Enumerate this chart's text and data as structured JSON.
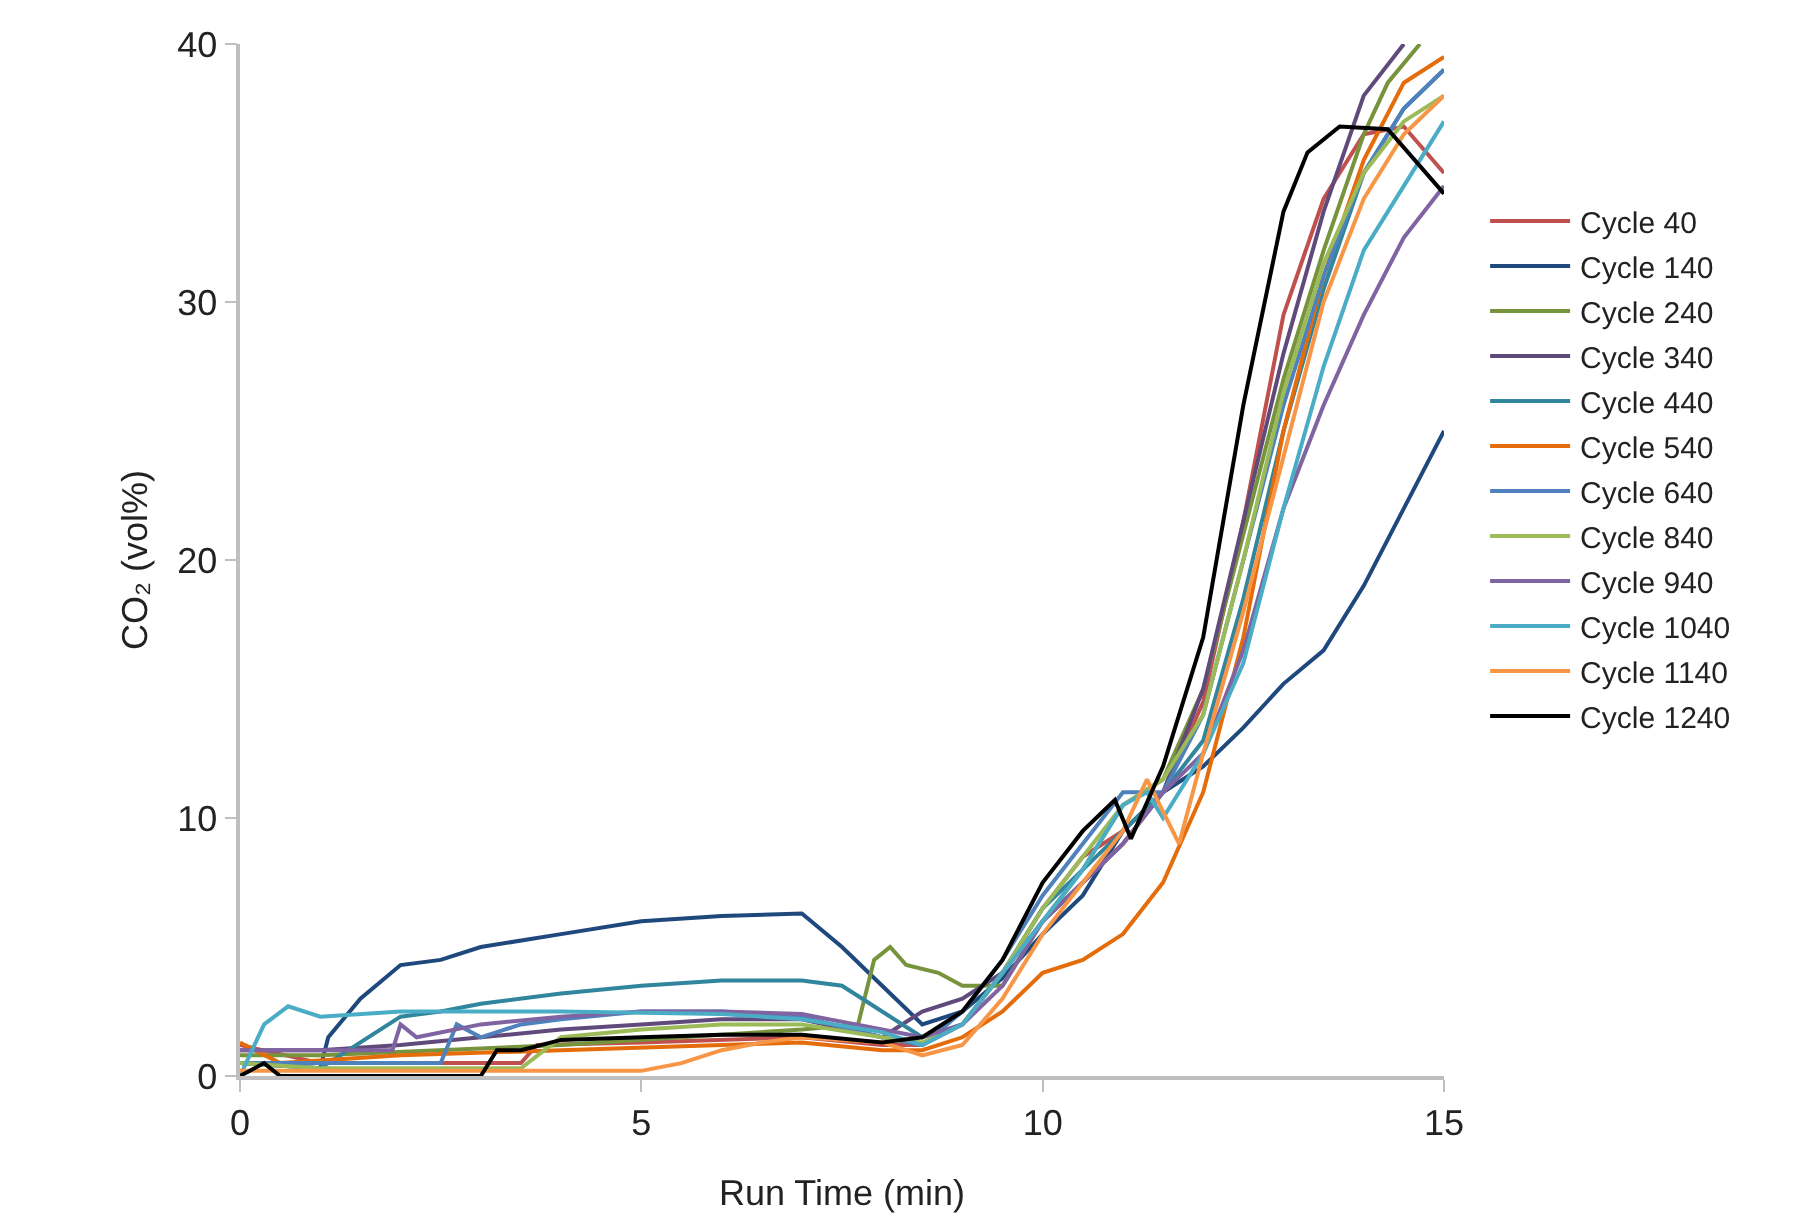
{
  "chart_data": {
    "type": "line",
    "xlabel": "Run Time (min)",
    "ylabel": "CO₂ (vol%)",
    "xlim": [
      0,
      15
    ],
    "ylim": [
      0,
      40
    ],
    "xticks": [
      0,
      5,
      10,
      15
    ],
    "yticks": [
      0,
      10,
      20,
      30,
      40
    ],
    "grid": false,
    "legend": "right",
    "marker": "none",
    "line_style": "solid",
    "series": [
      {
        "name": "Cycle 40",
        "color": "#c0504d",
        "x": [
          0,
          1,
          3.5,
          3.7,
          5,
          7,
          8,
          8.5,
          9,
          9.5,
          10,
          10.5,
          11,
          11.5,
          12,
          12.5,
          13,
          13.5,
          14,
          14.5,
          15
        ],
        "values": [
          1.2,
          0.5,
          0.5,
          1.2,
          1.3,
          1.5,
          1.2,
          1.2,
          2,
          4,
          6.5,
          8.5,
          9.5,
          11,
          14.5,
          21.5,
          29.5,
          34,
          36.5,
          36.8,
          35
        ]
      },
      {
        "name": "Cycle 140",
        "color": "#1f497d",
        "x": [
          0,
          1,
          1.1,
          1.5,
          2,
          2.5,
          3,
          4,
          5,
          6,
          7,
          7.5,
          8,
          8.5,
          9,
          9.5,
          10,
          10.5,
          11,
          11.5,
          12,
          12.5,
          13,
          13.5,
          14,
          14.5,
          15
        ],
        "values": [
          0.5,
          0.3,
          1.5,
          3,
          4.3,
          4.5,
          5,
          5.5,
          6,
          6.2,
          6.3,
          5,
          3.5,
          2,
          2.5,
          3.8,
          5.5,
          7,
          9.5,
          11,
          12,
          13.5,
          15.2,
          16.5,
          19,
          22,
          25
        ]
      },
      {
        "name": "Cycle 240",
        "color": "#77933c",
        "x": [
          0,
          1,
          4,
          7,
          7.7,
          7.9,
          8.1,
          8.3,
          8.7,
          9,
          9.5,
          10,
          10.5,
          11,
          11.5,
          12,
          12.5,
          13,
          13.5,
          14,
          14.3,
          14.7
        ],
        "values": [
          0.8,
          0.8,
          1.2,
          1.8,
          2,
          4.5,
          5,
          4.3,
          4,
          3.5,
          3.5,
          6,
          8,
          10.5,
          11.5,
          15,
          21,
          27,
          32,
          36.5,
          38.5,
          40
        ]
      },
      {
        "name": "Cycle 340",
        "color": "#604a7b",
        "x": [
          0,
          1,
          2,
          3,
          4,
          5,
          6,
          7,
          8,
          8.5,
          9,
          9.5,
          10,
          10.5,
          11,
          11.5,
          12,
          12.5,
          13,
          13.5,
          14,
          14.5
        ],
        "values": [
          1,
          1,
          1.2,
          1.5,
          1.8,
          2,
          2.2,
          2.2,
          1.5,
          2.5,
          3,
          4,
          6,
          7.5,
          9,
          11,
          15,
          21.5,
          28,
          33.5,
          38,
          40
        ]
      },
      {
        "name": "Cycle 440",
        "color": "#31859c",
        "x": [
          0,
          1,
          2,
          2.5,
          3,
          4,
          5,
          6,
          7,
          7.5,
          8,
          8.5,
          9,
          9.5,
          10,
          10.5,
          11,
          11.5,
          12,
          12.5,
          13,
          13.5,
          14,
          14.5,
          15
        ],
        "values": [
          0.5,
          0.3,
          2.3,
          2.5,
          2.8,
          3.2,
          3.5,
          3.7,
          3.7,
          3.5,
          2.5,
          1.5,
          2,
          4,
          6.5,
          8,
          9.5,
          11,
          13,
          18.5,
          25,
          30.5,
          35,
          37.5,
          39
        ]
      },
      {
        "name": "Cycle 540",
        "color": "#e46c0a",
        "x": [
          0,
          0.5,
          2,
          4,
          6,
          7,
          8,
          8.5,
          9,
          9.5,
          10,
          10.5,
          11,
          11.5,
          12,
          12.5,
          13,
          13.5,
          14,
          14.5,
          15
        ],
        "values": [
          1.3,
          0.5,
          0.8,
          1,
          1.2,
          1.3,
          1,
          1,
          1.5,
          2.5,
          4,
          4.5,
          5.5,
          7.5,
          11,
          17,
          25,
          31,
          35.5,
          38.5,
          39.5
        ]
      },
      {
        "name": "Cycle 640",
        "color": "#4f81bd",
        "x": [
          0,
          1,
          2.5,
          2.7,
          3,
          3.5,
          4,
          5,
          6,
          7,
          8,
          8.5,
          9,
          9.5,
          10,
          10.5,
          11,
          11.5,
          12,
          12.5,
          13,
          13.5,
          14,
          14.5,
          15
        ],
        "values": [
          0.5,
          0.5,
          0.5,
          2,
          1.5,
          2,
          2.2,
          2.5,
          2.5,
          2.3,
          1.5,
          1.2,
          2.5,
          4.5,
          7,
          9,
          11,
          11,
          14,
          20,
          26,
          31,
          35,
          37.5,
          39
        ]
      },
      {
        "name": "Cycle 840",
        "color": "#9bbb59",
        "x": [
          0,
          1,
          2,
          3,
          3.5,
          4,
          5,
          6,
          7,
          8,
          8.5,
          9,
          9.5,
          10,
          10.5,
          11,
          11.5,
          12,
          12.5,
          13,
          13.5,
          14,
          14.5,
          15
        ],
        "values": [
          0.5,
          0.3,
          0.3,
          0.3,
          0.3,
          1.5,
          1.8,
          2,
          2,
          1.5,
          1.3,
          2,
          4,
          6.5,
          8.5,
          10.5,
          11.5,
          14,
          20,
          26.5,
          31.5,
          35,
          37,
          38
        ]
      },
      {
        "name": "Cycle 940",
        "color": "#8064a2",
        "x": [
          0,
          1,
          1.9,
          2,
          2.2,
          3,
          4,
          5,
          6,
          7,
          8,
          8.5,
          9,
          9.5,
          10,
          10.5,
          11,
          11.5,
          12,
          12.5,
          13,
          13.5,
          14,
          14.5,
          15
        ],
        "values": [
          1,
          1,
          1,
          2,
          1.5,
          2,
          2.3,
          2.5,
          2.5,
          2.4,
          1.8,
          1.5,
          2,
          3.5,
          6,
          7.5,
          9,
          11,
          12.5,
          16.5,
          22,
          26,
          29.5,
          32.5,
          34.5
        ]
      },
      {
        "name": "Cycle 1040",
        "color": "#4bacc6",
        "x": [
          0,
          0.3,
          0.6,
          1,
          2,
          4,
          6,
          7,
          8,
          8.5,
          9,
          9.5,
          10,
          10.5,
          11,
          11.3,
          11.5,
          12,
          12.5,
          13,
          13.5,
          14,
          14.5,
          15
        ],
        "values": [
          0,
          2,
          2.7,
          2.3,
          2.5,
          2.5,
          2.4,
          2.2,
          1.7,
          1.2,
          2,
          4,
          6,
          8,
          10.5,
          11,
          10,
          12.5,
          16,
          22,
          27.5,
          32,
          34.5,
          37
        ]
      },
      {
        "name": "Cycle 1140",
        "color": "#f79646",
        "x": [
          0,
          1,
          3,
          5,
          5.5,
          6,
          6.5,
          7,
          8,
          8.5,
          9,
          9.5,
          10,
          10.5,
          11,
          11.3,
          11.7,
          12,
          12.5,
          13,
          13.5,
          14,
          14.5,
          15
        ],
        "values": [
          0.2,
          0.2,
          0.2,
          0.2,
          0.5,
          1,
          1.3,
          1.5,
          1.3,
          0.8,
          1.2,
          3,
          5.5,
          7.5,
          9.5,
          11.5,
          9,
          12.5,
          18,
          24,
          30,
          34,
          36.5,
          38
        ]
      },
      {
        "name": "Cycle 1240",
        "color": "#000000",
        "x": [
          0,
          0.3,
          0.5,
          3,
          3.2,
          3.5,
          4,
          5,
          6,
          7,
          8,
          8.5,
          9,
          9.5,
          10,
          10.5,
          10.9,
          11.1,
          11.5,
          12,
          12.5,
          13,
          13.3,
          13.7,
          14.3,
          15
        ],
        "values": [
          0,
          0.5,
          0,
          0,
          1,
          1,
          1.4,
          1.5,
          1.6,
          1.6,
          1.3,
          1.5,
          2.5,
          4.5,
          7.5,
          9.5,
          10.7,
          9.2,
          12,
          17,
          26,
          33.5,
          35.8,
          36.8,
          36.7,
          34.2
        ]
      }
    ]
  }
}
